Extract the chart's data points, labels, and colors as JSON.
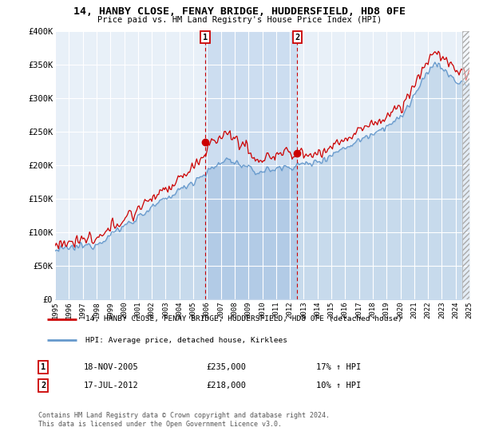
{
  "title": "14, HANBY CLOSE, FENAY BRIDGE, HUDDERSFIELD, HD8 0FE",
  "subtitle": "Price paid vs. HM Land Registry's House Price Index (HPI)",
  "background_color": "#ffffff",
  "plot_bg_color": "#e8f0f8",
  "highlight_color": "#ccddf0",
  "ylim": [
    0,
    400000
  ],
  "yticks": [
    0,
    50000,
    100000,
    150000,
    200000,
    250000,
    300000,
    350000,
    400000
  ],
  "ytick_labels": [
    "£0",
    "£50K",
    "£100K",
    "£150K",
    "£200K",
    "£250K",
    "£300K",
    "£350K",
    "£400K"
  ],
  "legend_label_red": "14, HANBY CLOSE, FENAY BRIDGE, HUDDERSFIELD, HD8 0FE (detached house)",
  "legend_label_blue": "HPI: Average price, detached house, Kirklees",
  "sale1_label": "1",
  "sale1_date": "18-NOV-2005",
  "sale1_price": "£235,000",
  "sale1_hpi": "17% ↑ HPI",
  "sale1_x": 2005.88,
  "sale1_y": 235000,
  "sale2_label": "2",
  "sale2_date": "17-JUL-2012",
  "sale2_price": "£218,000",
  "sale2_hpi": "10% ↑ HPI",
  "sale2_x": 2012.54,
  "sale2_y": 218000,
  "footnote1": "Contains HM Land Registry data © Crown copyright and database right 2024.",
  "footnote2": "This data is licensed under the Open Government Licence v3.0.",
  "red_color": "#cc0000",
  "blue_color": "#6699cc",
  "grid_color": "#ffffff",
  "xlim_start": 1995,
  "xlim_end": 2025,
  "hatch_start": 2024.5
}
